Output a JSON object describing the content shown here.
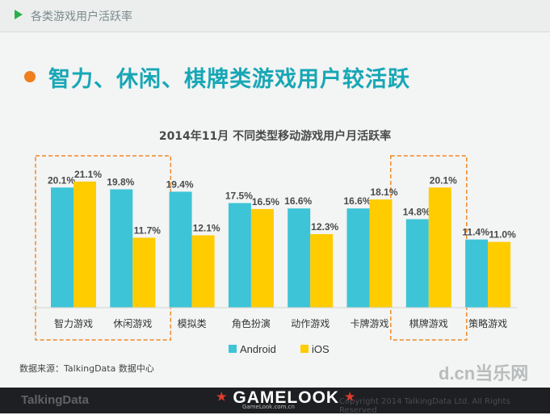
{
  "header": {
    "section_title": "各类游戏用户活跃率"
  },
  "headline": "智力、休闲、棋牌类游戏用户较活跃",
  "colors": {
    "android": "#3dc4d7",
    "ios": "#ffcc00",
    "accent": "#17a7b5",
    "highlight_box": "#f08a24"
  },
  "chart_data": {
    "type": "bar",
    "title": "2014年11月 不同类型移动游戏用户月活跃率",
    "xlabel": "",
    "ylabel": "",
    "categories": [
      "智力游戏",
      "休闲游戏",
      "模拟类",
      "角色扮演",
      "动作游戏",
      "卡牌游戏",
      "棋牌游戏",
      "策略游戏"
    ],
    "series": [
      {
        "name": "Android",
        "values": [
          20.1,
          19.8,
          19.4,
          17.5,
          16.6,
          16.6,
          14.8,
          11.4
        ]
      },
      {
        "name": "iOS",
        "values": [
          21.1,
          11.7,
          12.1,
          16.5,
          12.3,
          18.1,
          20.1,
          11.0
        ]
      }
    ],
    "value_labels": {
      "Android": [
        "20.1%",
        "19.8%",
        "19.4%",
        "17.5%",
        "16.6%",
        "16.6%",
        "14.8%",
        "11.4%"
      ],
      "iOS": [
        "21.1%",
        "11.7%",
        "12.1%",
        "16.5%",
        "12.3%",
        "18.1%",
        "20.1%",
        "11.0%"
      ]
    },
    "highlighted_groups": [
      [
        "智力游戏",
        "休闲游戏"
      ],
      [
        "棋牌游戏"
      ]
    ],
    "legend": "bottom-center",
    "grid": false
  },
  "source": "数据来源：TalkingData 数据中心",
  "footer": {
    "logo": "TalkingData",
    "copyright": "Copyright 2014 TalkingData Ltd. All Rights Reserved",
    "gamelook": "GAMELOOK",
    "gamelook_url": "GameLook.com.cn",
    "watermark": "d.cn当乐网"
  }
}
